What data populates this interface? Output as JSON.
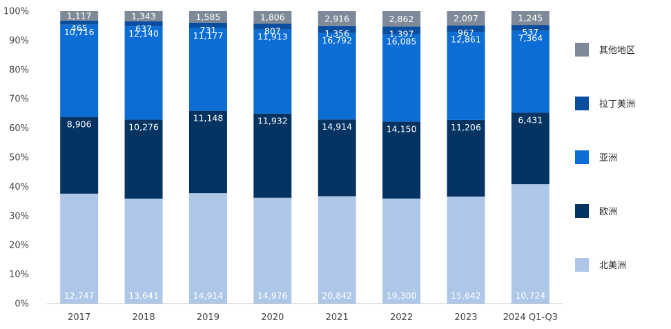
{
  "chart_data": {
    "type": "bar",
    "stacked": true,
    "normalized": true,
    "categories": [
      "2017",
      "2018",
      "2019",
      "2020",
      "2021",
      "2022",
      "2023",
      "2024 Q1-Q3"
    ],
    "series": [
      {
        "name": "北美洲",
        "color": "#aec7e8",
        "values": [
          12747,
          13641,
          14914,
          14976,
          20842,
          19300,
          15642,
          10724
        ]
      },
      {
        "name": "欧洲",
        "color": "#053462",
        "values": [
          8906,
          10276,
          11148,
          11932,
          14914,
          14150,
          11206,
          6431
        ]
      },
      {
        "name": "亚洲",
        "color": "#0c6dd4",
        "values": [
          10716,
          12140,
          11177,
          11913,
          16792,
          16085,
          12861,
          7364
        ]
      },
      {
        "name": "拉丁美洲",
        "color": "#0a4ea0",
        "values": [
          465,
          637,
          731,
          807,
          1356,
          1397,
          967,
          537
        ]
      },
      {
        "name": "其他地区",
        "color": "#7f8a99",
        "values": [
          1117,
          1343,
          1585,
          1806,
          2916,
          2862,
          2097,
          1245
        ]
      }
    ],
    "ylim": [
      0,
      100
    ],
    "y_unit": "%",
    "y_ticks": [
      "0%",
      "10%",
      "20%",
      "30%",
      "40%",
      "50%",
      "60%",
      "70%",
      "80%",
      "90%",
      "100%"
    ],
    "legend_position": "right",
    "legend_order": [
      "其他地区",
      "拉丁美洲",
      "亚洲",
      "欧洲",
      "北美洲"
    ],
    "grid": false,
    "title": "",
    "xlabel": "",
    "ylabel": ""
  }
}
